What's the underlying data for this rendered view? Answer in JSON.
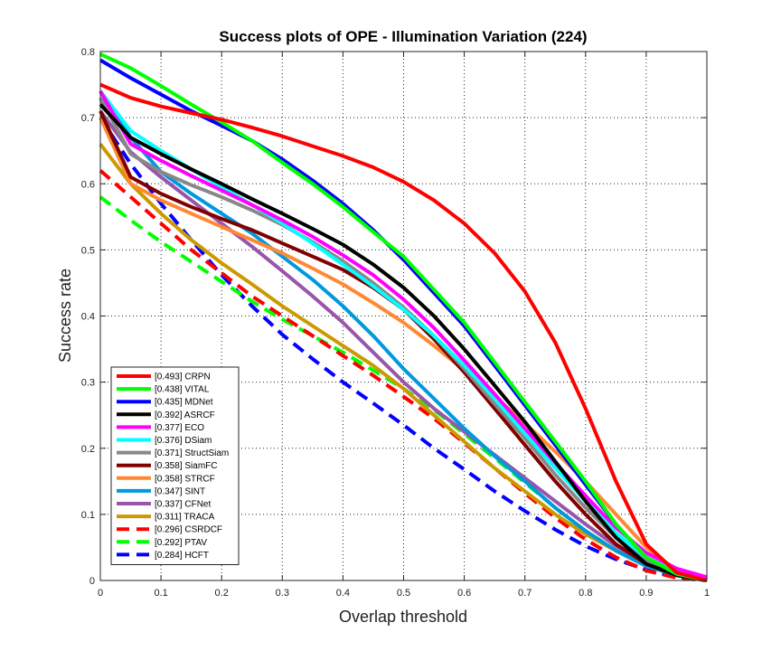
{
  "chart_data": {
    "type": "line",
    "title": "Success plots of OPE - Illumination Variation (224)",
    "xlabel": "Overlap threshold",
    "ylabel": "Success rate",
    "xlim": [
      0,
      1
    ],
    "ylim": [
      0,
      0.8
    ],
    "xticks": [
      "0",
      "0.1",
      "0.2",
      "0.3",
      "0.4",
      "0.5",
      "0.6",
      "0.7",
      "0.8",
      "0.9",
      "1"
    ],
    "yticks": [
      "0",
      "0.1",
      "0.2",
      "0.3",
      "0.4",
      "0.5",
      "0.6",
      "0.7",
      "0.8"
    ],
    "grid": true,
    "legend_position": "bottom-left",
    "x": [
      0,
      0.05,
      0.1,
      0.15,
      0.2,
      0.25,
      0.3,
      0.35,
      0.4,
      0.45,
      0.5,
      0.55,
      0.6,
      0.65,
      0.7,
      0.75,
      0.8,
      0.85,
      0.9,
      0.95,
      1
    ],
    "series": [
      {
        "name": "CRPN",
        "legend": "[0.493] CRPN",
        "color": "#ff0000",
        "dash": false,
        "values": [
          0.75,
          0.73,
          0.717,
          0.707,
          0.697,
          0.685,
          0.672,
          0.657,
          0.642,
          0.625,
          0.603,
          0.575,
          0.54,
          0.495,
          0.437,
          0.36,
          0.26,
          0.15,
          0.055,
          0.012,
          0.0
        ]
      },
      {
        "name": "VITAL",
        "legend": "[0.438] VITAL",
        "color": "#00ff00",
        "dash": false,
        "values": [
          0.796,
          0.775,
          0.748,
          0.72,
          0.693,
          0.665,
          0.632,
          0.6,
          0.565,
          0.527,
          0.49,
          0.44,
          0.39,
          0.33,
          0.27,
          0.21,
          0.15,
          0.085,
          0.035,
          0.01,
          0.0
        ]
      },
      {
        "name": "MDNet",
        "legend": "[0.435] MDNet",
        "color": "#0000ff",
        "dash": false,
        "values": [
          0.787,
          0.76,
          0.735,
          0.71,
          0.688,
          0.665,
          0.637,
          0.605,
          0.57,
          0.53,
          0.485,
          0.435,
          0.385,
          0.325,
          0.265,
          0.205,
          0.145,
          0.085,
          0.035,
          0.01,
          0.0
        ]
      },
      {
        "name": "ASRCF",
        "legend": "[0.392] ASRCF",
        "color": "#000000",
        "dash": false,
        "values": [
          0.72,
          0.67,
          0.645,
          0.622,
          0.6,
          0.577,
          0.555,
          0.532,
          0.508,
          0.478,
          0.443,
          0.4,
          0.35,
          0.295,
          0.24,
          0.18,
          0.12,
          0.065,
          0.025,
          0.008,
          0.0
        ]
      },
      {
        "name": "ECO",
        "legend": "[0.377] ECO",
        "color": "#ff00ff",
        "dash": false,
        "values": [
          0.74,
          0.66,
          0.635,
          0.612,
          0.59,
          0.568,
          0.545,
          0.52,
          0.492,
          0.462,
          0.425,
          0.382,
          0.333,
          0.282,
          0.23,
          0.178,
          0.128,
          0.08,
          0.042,
          0.018,
          0.005
        ]
      },
      {
        "name": "DSiam",
        "legend": "[0.376] DSiam",
        "color": "#00ffff",
        "dash": false,
        "values": [
          0.74,
          0.68,
          0.65,
          0.622,
          0.595,
          0.568,
          0.54,
          0.51,
          0.478,
          0.445,
          0.41,
          0.37,
          0.325,
          0.275,
          0.222,
          0.17,
          0.12,
          0.072,
          0.035,
          0.012,
          0.0
        ]
      },
      {
        "name": "StructSiam",
        "legend": "[0.371] StructSiam",
        "color": "#888888",
        "dash": false,
        "values": [
          0.73,
          0.645,
          0.618,
          0.598,
          0.58,
          0.56,
          0.538,
          0.512,
          0.483,
          0.45,
          0.413,
          0.37,
          0.32,
          0.267,
          0.215,
          0.16,
          0.11,
          0.065,
          0.03,
          0.01,
          0.0
        ]
      },
      {
        "name": "SiamFC",
        "legend": "[0.358] SiamFC",
        "color": "#800000",
        "dash": false,
        "values": [
          0.71,
          0.61,
          0.585,
          0.565,
          0.547,
          0.53,
          0.51,
          0.49,
          0.47,
          0.443,
          0.41,
          0.365,
          0.315,
          0.26,
          0.205,
          0.15,
          0.1,
          0.055,
          0.025,
          0.008,
          0.0
        ]
      },
      {
        "name": "STRCF",
        "legend": "[0.358] STRCF",
        "color": "#ff8833",
        "dash": false,
        "values": [
          0.7,
          0.6,
          0.575,
          0.555,
          0.535,
          0.515,
          0.495,
          0.472,
          0.448,
          0.42,
          0.39,
          0.355,
          0.318,
          0.278,
          0.238,
          0.195,
          0.15,
          0.1,
          0.05,
          0.015,
          0.0
        ]
      },
      {
        "name": "SINT",
        "legend": "[0.347] SINT",
        "color": "#0099dd",
        "dash": false,
        "values": [
          0.74,
          0.67,
          0.618,
          0.585,
          0.555,
          0.525,
          0.49,
          0.455,
          0.415,
          0.37,
          0.32,
          0.275,
          0.23,
          0.188,
          0.15,
          0.11,
          0.075,
          0.045,
          0.022,
          0.008,
          0.0
        ]
      },
      {
        "name": "CFNet",
        "legend": "[0.337] CFNet",
        "color": "#9955aa",
        "dash": false,
        "values": [
          0.71,
          0.648,
          0.61,
          0.575,
          0.54,
          0.505,
          0.468,
          0.43,
          0.39,
          0.345,
          0.3,
          0.26,
          0.225,
          0.19,
          0.155,
          0.12,
          0.085,
          0.052,
          0.025,
          0.008,
          0.0
        ]
      },
      {
        "name": "TRACA",
        "legend": "[0.311] TRACA",
        "color": "#cc9900",
        "dash": false,
        "values": [
          0.66,
          0.6,
          0.555,
          0.515,
          0.48,
          0.448,
          0.415,
          0.385,
          0.355,
          0.325,
          0.29,
          0.25,
          0.21,
          0.17,
          0.135,
          0.1,
          0.07,
          0.045,
          0.022,
          0.008,
          0.0
        ]
      },
      {
        "name": "CSRDCF",
        "legend": "[0.296] CSRDCF",
        "color": "#ff0000",
        "dash": true,
        "values": [
          0.62,
          0.58,
          0.54,
          0.5,
          0.465,
          0.43,
          0.4,
          0.37,
          0.34,
          0.31,
          0.278,
          0.245,
          0.208,
          0.17,
          0.132,
          0.095,
          0.062,
          0.035,
          0.015,
          0.004,
          0.0
        ]
      },
      {
        "name": "PTAV",
        "legend": "[0.292] PTAV",
        "color": "#00ff00",
        "dash": true,
        "values": [
          0.58,
          0.545,
          0.512,
          0.482,
          0.452,
          0.422,
          0.395,
          0.37,
          0.345,
          0.318,
          0.29,
          0.258,
          0.222,
          0.185,
          0.148,
          0.11,
          0.075,
          0.045,
          0.022,
          0.008,
          0.0
        ]
      },
      {
        "name": "HCFT",
        "legend": "[0.284] HCFT",
        "color": "#0000ff",
        "dash": true,
        "values": [
          0.7,
          0.63,
          0.57,
          0.515,
          0.462,
          0.415,
          0.372,
          0.335,
          0.3,
          0.268,
          0.235,
          0.2,
          0.168,
          0.135,
          0.105,
          0.077,
          0.052,
          0.032,
          0.016,
          0.005,
          0.0
        ]
      }
    ]
  }
}
